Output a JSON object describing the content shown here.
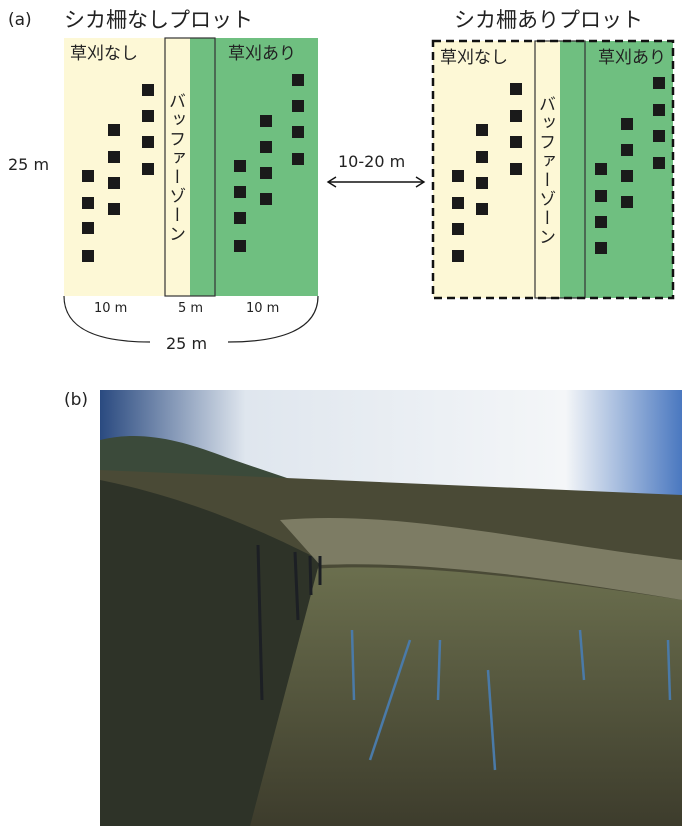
{
  "panel_a": {
    "label": "(a)",
    "left_plot": {
      "title": "シカ柵なしプロット",
      "no_mowing": "草刈なし",
      "mowing": "草刈あり",
      "buffer": "バッファーゾーン"
    },
    "right_plot": {
      "title": "シカ柵ありプロット",
      "no_mowing": "草刈なし",
      "mowing": "草刈あり",
      "buffer": "バッファーゾーン"
    },
    "height_label": "25 m",
    "distance_label": "10-20 m",
    "widths": [
      "10 m",
      "5 m",
      "10 m"
    ],
    "total_width": "25 m"
  },
  "panel_b": {
    "label": "(b)"
  }
}
